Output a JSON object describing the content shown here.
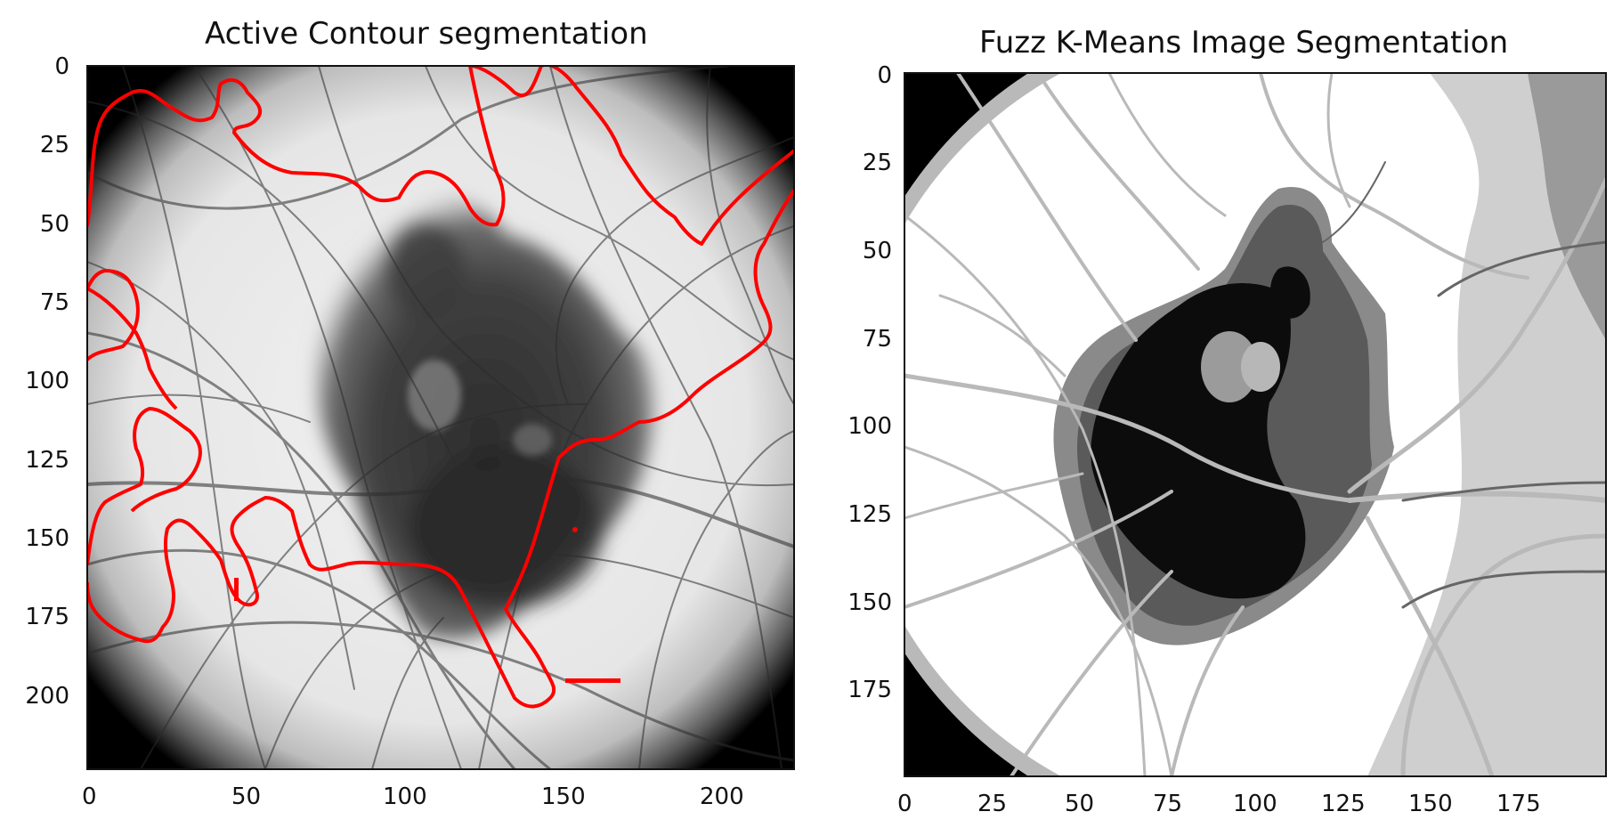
{
  "figure": {
    "panels": [
      {
        "title": "Active Contour segmentation",
        "x_ticks": [
          "0",
          "50",
          "100",
          "150",
          "200"
        ],
        "y_ticks": [
          "0",
          "25",
          "50",
          "75",
          "100",
          "125",
          "150",
          "175",
          "200"
        ],
        "content": "grayscale dermoscopy image of a dark skin lesion with dense dark hair strands; red active-contour outline",
        "contour_color": "#ff0000"
      },
      {
        "title": "Fuzz K-Means Image Segmentation",
        "x_ticks": [
          "0",
          "25",
          "50",
          "75",
          "100",
          "125",
          "150",
          "175"
        ],
        "y_ticks": [
          "0",
          "25",
          "50",
          "75",
          "100",
          "125",
          "150",
          "175"
        ],
        "content": "4-level gray cluster map of the lesion with hair strands; black corners",
        "cluster_colors": [
          "#000000",
          "#555555",
          "#9b9b9b",
          "#ffffff"
        ]
      }
    ]
  }
}
